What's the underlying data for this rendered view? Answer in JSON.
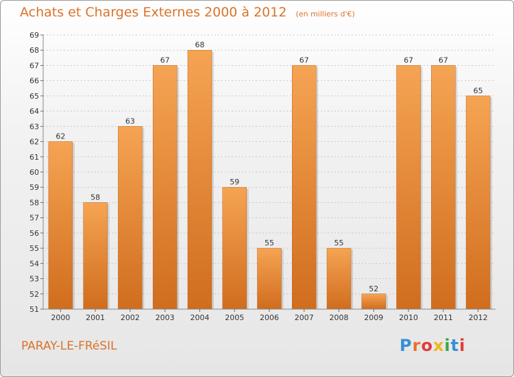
{
  "header": {
    "title": "Achats et Charges Externes 2000 à 2012",
    "subtitle": "(en milliers d'€)"
  },
  "footer": {
    "town": "PARAY-LE-FRéSIL",
    "brand": "Proxiti",
    "brand_colors": [
      "#3a8fd6",
      "#e8722b",
      "#e03b3b",
      "#f2b51e",
      "#3aa64a",
      "#3a8fd6",
      "#e03b3b"
    ]
  },
  "chart_data": {
    "type": "bar",
    "title": "Achats et Charges Externes 2000 à 2012",
    "subtitle": "(en milliers d'€)",
    "categories": [
      "2000",
      "2001",
      "2002",
      "2003",
      "2004",
      "2005",
      "2006",
      "2007",
      "2008",
      "2009",
      "2010",
      "2011",
      "2012"
    ],
    "values": [
      62,
      58,
      63,
      67,
      68,
      59,
      55,
      67,
      55,
      52,
      67,
      67,
      65
    ],
    "data_labels": [
      "62",
      "58",
      "63",
      "67",
      "68",
      "59",
      "55",
      "67",
      "55",
      "52",
      "67",
      "67",
      "65"
    ],
    "yticks": [
      "51",
      "52",
      "53",
      "54",
      "55",
      "56",
      "57",
      "58",
      "59",
      "60",
      "61",
      "62",
      "63",
      "64",
      "65",
      "66",
      "67",
      "68",
      "69"
    ],
    "ylim": [
      51,
      69
    ],
    "grid": true,
    "bar_color_light": "#f5a453",
    "bar_color_dark": "#d06d1e"
  }
}
